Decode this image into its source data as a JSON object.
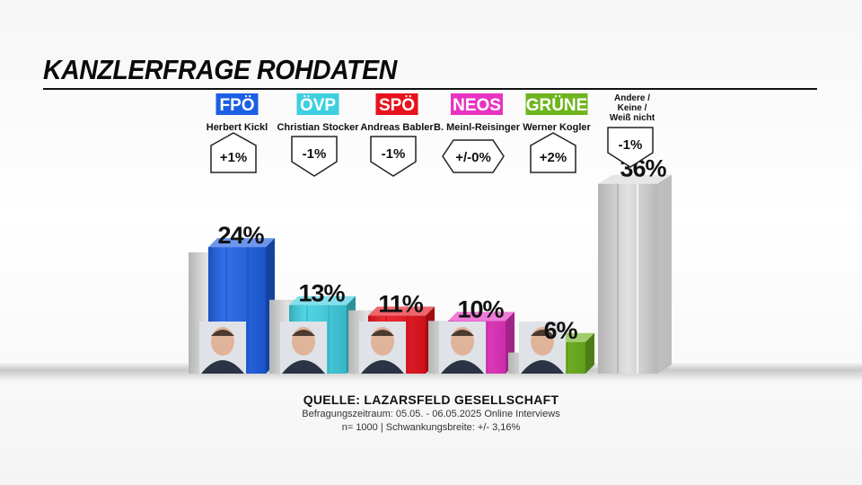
{
  "title": "KANZLERFRAGE ROHDATEN",
  "source": {
    "title": "QUELLE: LAZARSFELD GESELLSCHAFT",
    "line1": "Befragungszeitraum: 05.05. - 06.05.2025  Online Interviews",
    "line2": "n= 1000 | Schwankungsbreite: +/- 3,16%"
  },
  "chart_data": {
    "type": "bar",
    "categories": [
      "FPÖ",
      "ÖVP",
      "SPÖ",
      "NEOS",
      "GRÜNE",
      "Andere / Keine / Weiß nicht"
    ],
    "candidates": [
      "Herbert Kickl",
      "Christian Stocker",
      "Andreas Babler",
      "B. Meinl-Reisinger",
      "Werner Kogler",
      ""
    ],
    "values": [
      24,
      13,
      11,
      10,
      6,
      36
    ],
    "value_labels": [
      "24%",
      "13%",
      "11%",
      "10%",
      "6%",
      "36%"
    ],
    "changes": [
      "+1%",
      "-1%",
      "-1%",
      "+/-0%",
      "+2%",
      "-1%"
    ],
    "change_direction": [
      "up",
      "down",
      "down",
      "neutral",
      "up",
      "down"
    ],
    "colors": [
      "#1d5fe3",
      "#3ecfe0",
      "#e8121d",
      "#e833c2",
      "#6eb41e",
      "#c4c4c4"
    ],
    "previous_values_shown": true,
    "grid": false,
    "legend": "none"
  }
}
